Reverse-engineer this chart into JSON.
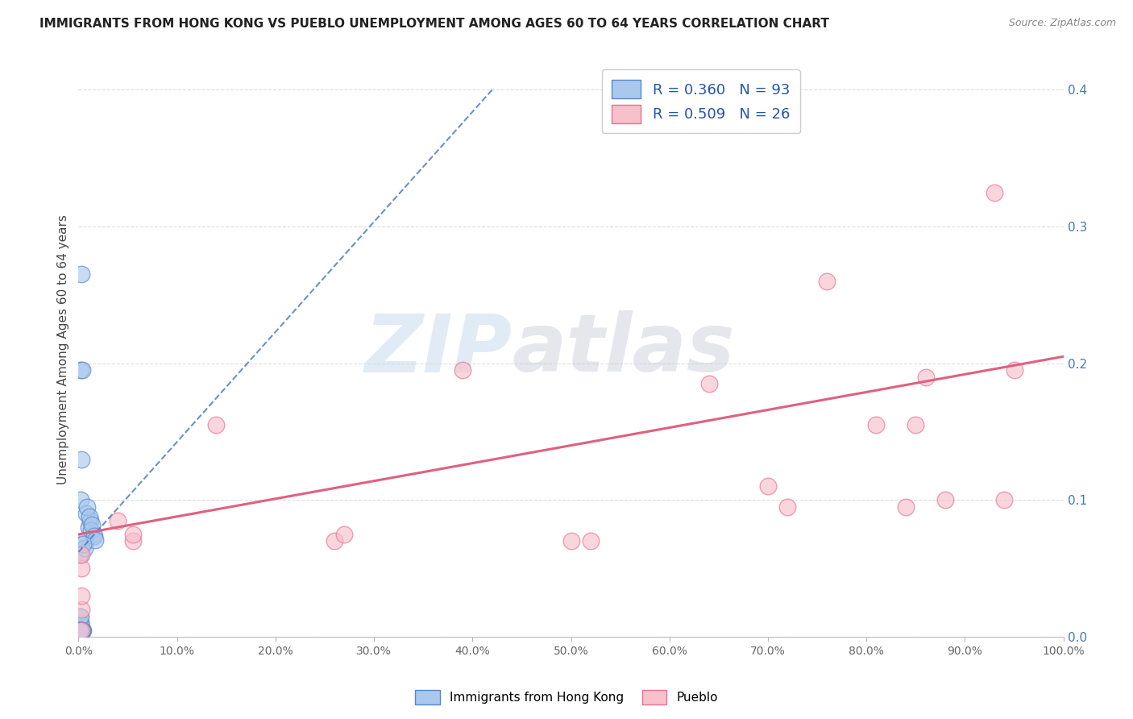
{
  "title": "IMMIGRANTS FROM HONG KONG VS PUEBLO UNEMPLOYMENT AMONG AGES 60 TO 64 YEARS CORRELATION CHART",
  "source": "Source: ZipAtlas.com",
  "ylabel": "Unemployment Among Ages 60 to 64 years",
  "xlim": [
    0,
    1.0
  ],
  "ylim": [
    0,
    0.42
  ],
  "xticks": [
    0,
    0.1,
    0.2,
    0.3,
    0.4,
    0.5,
    0.6,
    0.7,
    0.8,
    0.9,
    1.0
  ],
  "xticklabels": [
    "0.0%",
    "10.0%",
    "20.0%",
    "30.0%",
    "40.0%",
    "50.0%",
    "60.0%",
    "70.0%",
    "80.0%",
    "90.0%",
    "100.0%"
  ],
  "yticks": [
    0.0,
    0.1,
    0.2,
    0.3,
    0.4
  ],
  "yticklabels": [
    "",
    "10.0%",
    "20.0%",
    "30.0%",
    "40.0%"
  ],
  "blue_R": "R = 0.360",
  "blue_N": "N = 93",
  "pink_R": "R = 0.509",
  "pink_N": "N = 26",
  "legend_label_blue": "Immigrants from Hong Kong",
  "legend_label_pink": "Pueblo",
  "watermark_zip": "ZIP",
  "watermark_atlas": "atlas",
  "blue_color": "#AAC8EE",
  "blue_edge_color": "#5588CC",
  "pink_color": "#F7C0CB",
  "pink_edge_color": "#E87090",
  "blue_line_color": "#4477BB",
  "pink_line_color": "#E06080",
  "background_color": "#FFFFFF",
  "grid_color": "#DDDDDD",
  "title_color": "#222222",
  "source_color": "#888888",
  "tick_color": "#666666",
  "ylabel_color": "#444444",
  "right_ytick_color": "#4477BB",
  "blue_scatter_x": [
    0.003,
    0.005,
    0.002,
    0.004,
    0.003,
    0.001,
    0.002,
    0.003,
    0.004,
    0.003,
    0.002,
    0.001,
    0.003,
    0.002,
    0.004,
    0.001,
    0.002,
    0.003,
    0.001,
    0.002,
    0.003,
    0.002,
    0.001,
    0.003,
    0.002,
    0.004,
    0.001,
    0.002,
    0.003,
    0.001,
    0.002,
    0.003,
    0.001,
    0.002,
    0.001,
    0.002,
    0.001,
    0.002,
    0.001,
    0.003,
    0.002,
    0.001,
    0.002,
    0.001,
    0.003,
    0.002,
    0.001,
    0.002,
    0.001,
    0.002,
    0.001,
    0.002,
    0.001,
    0.002,
    0.001,
    0.002,
    0.001,
    0.002,
    0.001,
    0.003,
    0.002,
    0.001,
    0.002,
    0.001,
    0.002,
    0.001,
    0.002,
    0.001,
    0.002,
    0.001,
    0.002,
    0.001,
    0.002,
    0.001,
    0.002,
    0.003,
    0.004,
    0.002,
    0.003,
    0.001,
    0.01,
    0.008,
    0.012,
    0.015,
    0.007,
    0.006,
    0.009,
    0.011,
    0.013,
    0.014,
    0.016,
    0.017,
    0.005
  ],
  "blue_scatter_y": [
    0.265,
    0.005,
    0.195,
    0.195,
    0.13,
    0.005,
    0.005,
    0.005,
    0.005,
    0.005,
    0.06,
    0.06,
    0.005,
    0.1,
    0.005,
    0.005,
    0.005,
    0.005,
    0.005,
    0.005,
    0.005,
    0.005,
    0.005,
    0.005,
    0.005,
    0.005,
    0.005,
    0.005,
    0.005,
    0.005,
    0.005,
    0.005,
    0.005,
    0.005,
    0.005,
    0.005,
    0.005,
    0.005,
    0.005,
    0.005,
    0.005,
    0.005,
    0.005,
    0.005,
    0.005,
    0.005,
    0.005,
    0.005,
    0.005,
    0.005,
    0.005,
    0.01,
    0.01,
    0.01,
    0.005,
    0.005,
    0.005,
    0.005,
    0.005,
    0.005,
    0.005,
    0.015,
    0.015,
    0.005,
    0.005,
    0.005,
    0.005,
    0.005,
    0.005,
    0.005,
    0.005,
    0.005,
    0.005,
    0.005,
    0.005,
    0.005,
    0.005,
    0.005,
    0.005,
    0.005,
    0.08,
    0.09,
    0.085,
    0.075,
    0.07,
    0.065,
    0.095,
    0.088,
    0.078,
    0.082,
    0.074,
    0.071,
    0.068
  ],
  "pink_scatter_x": [
    0.003,
    0.003,
    0.003,
    0.003,
    0.003,
    0.04,
    0.055,
    0.055,
    0.14,
    0.26,
    0.27,
    0.39,
    0.5,
    0.52,
    0.64,
    0.7,
    0.72,
    0.76,
    0.81,
    0.84,
    0.85,
    0.86,
    0.88,
    0.93,
    0.94,
    0.95
  ],
  "pink_scatter_y": [
    0.005,
    0.02,
    0.03,
    0.05,
    0.06,
    0.085,
    0.07,
    0.075,
    0.155,
    0.07,
    0.075,
    0.195,
    0.07,
    0.07,
    0.185,
    0.11,
    0.095,
    0.26,
    0.155,
    0.095,
    0.155,
    0.19,
    0.1,
    0.325,
    0.1,
    0.195
  ],
  "blue_trend_x": [
    0.0,
    0.42
  ],
  "blue_trend_y": [
    0.062,
    0.4
  ],
  "pink_trend_x": [
    0.0,
    1.0
  ],
  "pink_trend_y": [
    0.075,
    0.205
  ]
}
